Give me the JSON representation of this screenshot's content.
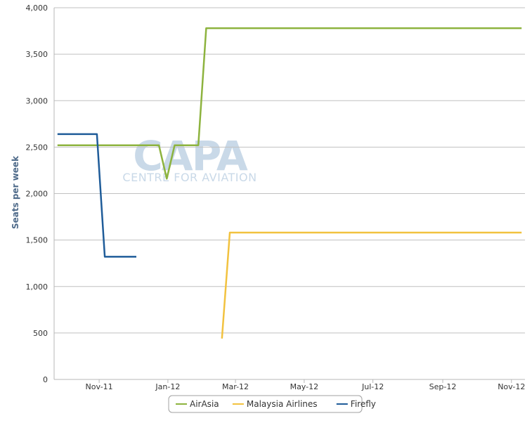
{
  "chart_data": {
    "type": "line",
    "ylabel": "Seats per week",
    "ylim": [
      0,
      4000
    ],
    "y_ticks": [
      0,
      500,
      1000,
      1500,
      2000,
      2500,
      3000,
      3500,
      4000
    ],
    "y_tick_labels": [
      "0",
      "500",
      "1,000",
      "1,500",
      "2,000",
      "2,500",
      "3,000",
      "3,500",
      "4,000"
    ],
    "x_tick_labels": [
      "Nov-11",
      "Jan-12",
      "Mar-12",
      "May-12",
      "Jul-12",
      "Sep-12",
      "Nov-12"
    ],
    "x_tick_dates": [
      "2011-11-01",
      "2012-01-01",
      "2012-03-01",
      "2012-05-01",
      "2012-07-01",
      "2012-09-01",
      "2012-11-01"
    ],
    "xlim": [
      "2011-09-22",
      "2012-11-13"
    ],
    "grid": true,
    "legend_position": "bottom-center",
    "watermark": {
      "main": "CAPA",
      "sub": "CENTRE FOR AVIATION"
    },
    "series": [
      {
        "name": "AirAsia",
        "color": "#8db33e",
        "points": [
          [
            "2011-09-25",
            2520
          ],
          [
            "2011-12-24",
            2520
          ],
          [
            "2011-12-31",
            2160
          ],
          [
            "2012-01-07",
            2520
          ],
          [
            "2012-01-28",
            2520
          ],
          [
            "2012-02-04",
            3780
          ],
          [
            "2012-11-10",
            3780
          ]
        ]
      },
      {
        "name": "Malaysia Airlines",
        "color": "#f2c23f",
        "points": [
          [
            "2012-02-18",
            440
          ],
          [
            "2012-02-25",
            1580
          ],
          [
            "2012-11-10",
            1580
          ]
        ]
      },
      {
        "name": "Firefly",
        "color": "#1f5c99",
        "points": [
          [
            "2011-09-25",
            2640
          ],
          [
            "2011-10-30",
            2640
          ],
          [
            "2011-11-06",
            1320
          ],
          [
            "2011-12-04",
            1320
          ]
        ]
      }
    ]
  }
}
